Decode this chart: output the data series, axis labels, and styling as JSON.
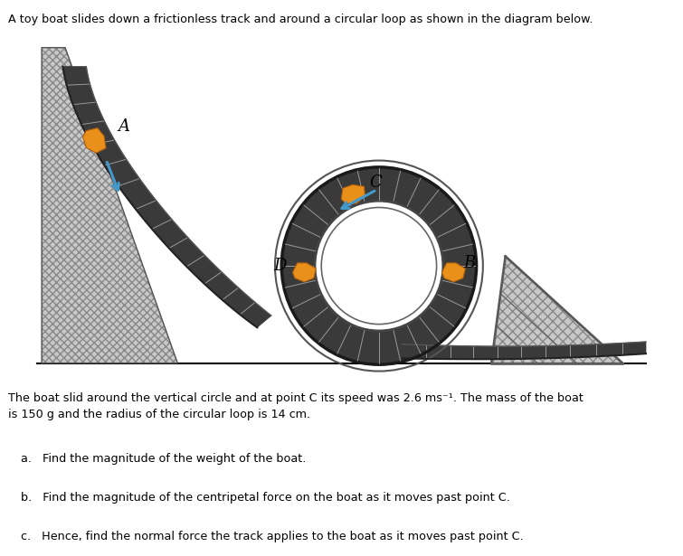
{
  "title_text": "A toy boat slides down a frictionless track and around a circular loop as shown in the diagram below.",
  "body_text": "The boat slid around the vertical circle and at point C its speed was 2.6 ms⁻¹. The mass of the boat\nis 150 g and the radius of the circular loop is 14 cm.",
  "questions": [
    "a.   Find the magnitude of the weight of the boat.",
    "b.   Find the magnitude of the centripetal force on the boat as it moves past point C.",
    "c.   Hence, find the normal force the track applies to the boat as it moves past point C."
  ],
  "bg_color": "#ffffff",
  "text_color": "#000000",
  "track_dark": "#3a3a3a",
  "track_mid": "#666666",
  "track_light": "#999999",
  "hatch_fill": "#c8c8c8",
  "orange": "#E8901A",
  "blue_arrow": "#4499CC",
  "fig_width": 7.55,
  "fig_height": 6.15,
  "dpi": 100
}
